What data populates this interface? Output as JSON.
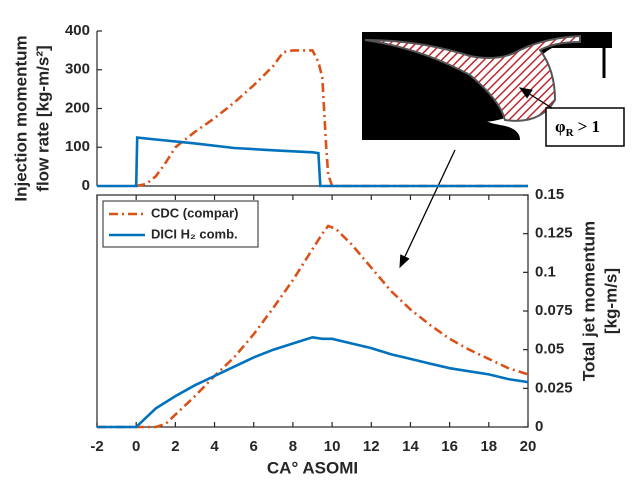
{
  "chart_data": [
    {
      "type": "line",
      "ylabel": [
        "Injection momentum",
        "flow rate [kg-m/s²]"
      ],
      "xlim": [
        -2,
        20
      ],
      "ylim": [
        0,
        400
      ],
      "yticks": [
        0,
        100,
        200,
        300,
        400
      ],
      "annotation": {
        "symbol": "φ",
        "subscript": "R",
        "text": "> 1"
      },
      "series": [
        {
          "name": "CDC (compar)",
          "color": "#d95319",
          "dash": "dashdot",
          "x": [
            0,
            0.5,
            1,
            1.5,
            2,
            2.5,
            3,
            4,
            5,
            6,
            7,
            7.5,
            8,
            8.5,
            9,
            9.3,
            9.5,
            9.7,
            9.8,
            10,
            20
          ],
          "values": [
            0,
            5,
            25,
            60,
            100,
            120,
            140,
            175,
            215,
            260,
            310,
            345,
            350,
            350,
            350,
            320,
            280,
            100,
            30,
            0,
            0
          ]
        },
        {
          "name": "DICI H₂ comb.",
          "color": "#0072bd",
          "dash": "solid",
          "x": [
            -2,
            0,
            0.05,
            1,
            3,
            5,
            7,
            9,
            9.3,
            9.4,
            20
          ],
          "values": [
            0,
            0,
            125,
            120,
            110,
            98,
            92,
            87,
            85,
            0,
            0
          ]
        }
      ]
    },
    {
      "type": "line",
      "xlabel": "CA° ASOMI",
      "y2label": [
        "Total jet momentum",
        "[kg-m/s]"
      ],
      "xlim": [
        -2,
        20
      ],
      "xticks": [
        -2,
        0,
        2,
        4,
        6,
        8,
        10,
        12,
        14,
        16,
        18,
        20
      ],
      "y2lim": [
        0,
        0.15
      ],
      "y2ticks": [
        0,
        0.025,
        0.05,
        0.075,
        0.1,
        0.125,
        0.15
      ],
      "legend": "upper left",
      "series": [
        {
          "name": "CDC (compar)",
          "color": "#d95319",
          "dash": "dashdot",
          "axis": "y2",
          "x": [
            -2,
            0,
            1,
            1.5,
            2,
            3,
            4,
            5,
            6,
            7,
            8,
            9,
            9.5,
            9.8,
            10.2,
            11,
            12,
            13,
            14,
            15,
            16,
            17,
            18,
            19,
            20
          ],
          "values": [
            0,
            0,
            0,
            0.002,
            0.008,
            0.02,
            0.033,
            0.045,
            0.06,
            0.077,
            0.095,
            0.115,
            0.125,
            0.13,
            0.128,
            0.118,
            0.103,
            0.088,
            0.076,
            0.066,
            0.057,
            0.05,
            0.044,
            0.038,
            0.034
          ]
        },
        {
          "name": "DICI H₂ comb.",
          "color": "#0072bd",
          "dash": "solid",
          "axis": "y2",
          "x": [
            -2,
            0,
            0.5,
            1,
            2,
            3,
            4,
            5,
            6,
            7,
            7.5,
            8,
            8.5,
            9,
            9.5,
            10,
            11,
            12,
            13,
            14,
            15,
            16,
            17,
            18,
            19,
            20
          ],
          "values": [
            0,
            0,
            0.006,
            0.012,
            0.02,
            0.027,
            0.033,
            0.039,
            0.045,
            0.05,
            0.052,
            0.054,
            0.056,
            0.058,
            0.057,
            0.057,
            0.054,
            0.051,
            0.047,
            0.044,
            0.041,
            0.038,
            0.036,
            0.034,
            0.031,
            0.029
          ]
        }
      ]
    }
  ]
}
